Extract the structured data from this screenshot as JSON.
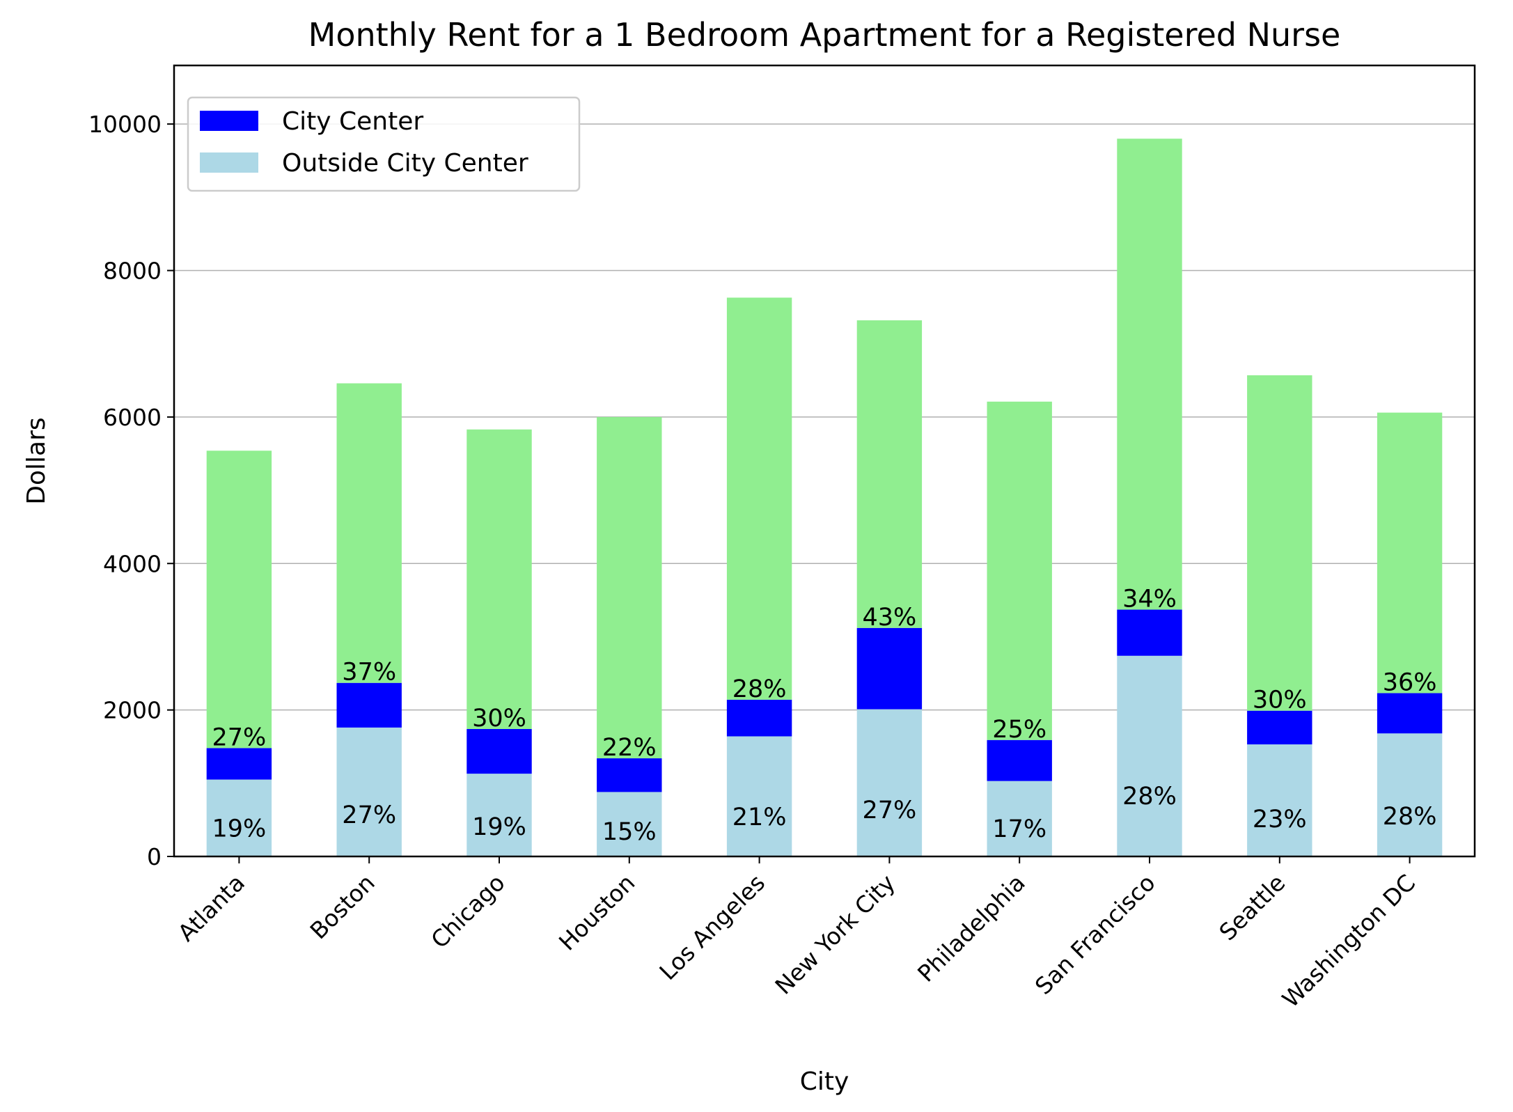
{
  "chart_data": {
    "type": "bar",
    "stacked": true,
    "title": "Monthly Rent for a 1 Bedroom Apartment for a Registered Nurse",
    "xlabel": "City",
    "ylabel": "Dollars",
    "ylim": [
      0,
      10800
    ],
    "yticks": [
      0,
      2000,
      4000,
      6000,
      8000,
      10000
    ],
    "grid": "horizontal",
    "legend_position": "top-left",
    "categories": [
      "Atlanta",
      "Boston",
      "Chicago",
      "Houston",
      "Los Angeles",
      "New York City",
      "Philadelphia",
      "San Francisco",
      "Seattle",
      "Washington DC"
    ],
    "series": [
      {
        "name": "Outside City Center",
        "color": "#add8e6",
        "values": [
          1050,
          1760,
          1130,
          880,
          1640,
          2010,
          1030,
          2740,
          1530,
          1680
        ],
        "labels": [
          "19%",
          "27%",
          "19%",
          "15%",
          "21%",
          "27%",
          "17%",
          "28%",
          "23%",
          "28%"
        ]
      },
      {
        "name": "City Center",
        "color": "#0000ff",
        "values": [
          430,
          610,
          610,
          460,
          500,
          1110,
          560,
          630,
          460,
          550
        ],
        "labels": [
          "27%",
          "37%",
          "30%",
          "22%",
          "28%",
          "43%",
          "25%",
          "34%",
          "30%",
          "36%"
        ]
      },
      {
        "color": "#90ee90",
        "values": [
          4060,
          4090,
          4090,
          4660,
          5490,
          4200,
          4620,
          6430,
          4580,
          3830
        ]
      }
    ]
  }
}
